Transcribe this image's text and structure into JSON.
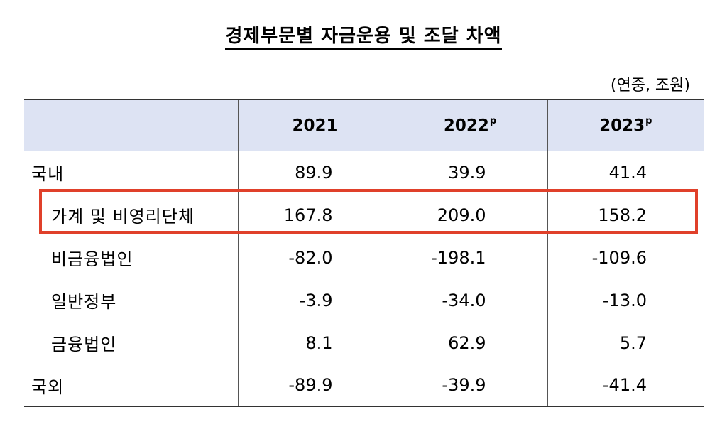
{
  "title": "경제부문별 자금운용 및 조달 차액",
  "unit": "(연중, 조원)",
  "highlight_color": "#e0402a",
  "header_color": "#dde3f3",
  "columns": [
    {
      "year": "2021",
      "mark": ""
    },
    {
      "year": "2022",
      "mark": "p"
    },
    {
      "year": "2023",
      "mark": "p"
    }
  ],
  "rows": [
    {
      "label": "국내",
      "values": [
        "89.9",
        "39.9",
        "41.4"
      ]
    },
    {
      "label": "가계 및 비영리단체",
      "values": [
        "167.8",
        "209.0",
        "158.2"
      ]
    },
    {
      "label": "비금융법인",
      "values": [
        "-82.0",
        "-198.1",
        "-109.6"
      ]
    },
    {
      "label": "일반정부",
      "values": [
        "-3.9",
        "-34.0",
        "-13.0"
      ]
    },
    {
      "label": "금융법인",
      "values": [
        "8.1",
        "62.9",
        "5.7"
      ]
    },
    {
      "label": "국외",
      "values": [
        "-89.9",
        "-39.9",
        "-41.4"
      ]
    }
  ]
}
